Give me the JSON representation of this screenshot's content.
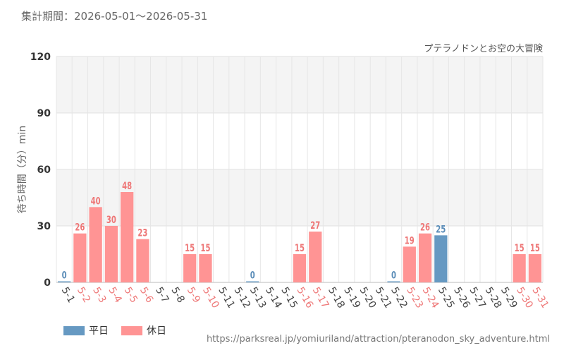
{
  "header": {
    "title": "集計期間：2026-05-01～2026-05-31"
  },
  "chart_data": {
    "type": "bar",
    "title": "プテラノドンとお空の大冒険",
    "ylabel": "待ち時間（分）min",
    "xlabel": "",
    "ylim": [
      0,
      120
    ],
    "yticks": [
      0,
      30,
      60,
      90,
      120
    ],
    "grid": true,
    "legend_placement": "bottom-left",
    "categories": [
      "5-1",
      "5-2",
      "5-3",
      "5-4",
      "5-5",
      "5-6",
      "5-7",
      "5-8",
      "5-9",
      "5-10",
      "5-11",
      "5-12",
      "5-13",
      "5-14",
      "5-15",
      "5-16",
      "5-17",
      "5-18",
      "5-19",
      "5-20",
      "5-21",
      "5-22",
      "5-23",
      "5-24",
      "5-25",
      "5-26",
      "5-27",
      "5-28",
      "5-29",
      "5-30",
      "5-31"
    ],
    "values": [
      0,
      26,
      40,
      30,
      48,
      23,
      null,
      null,
      15,
      15,
      null,
      null,
      0,
      null,
      null,
      15,
      27,
      null,
      null,
      null,
      null,
      0,
      19,
      26,
      25,
      null,
      null,
      null,
      null,
      15,
      15
    ],
    "day_types": [
      "weekday",
      "holiday",
      "holiday",
      "holiday",
      "holiday",
      "holiday",
      "weekday",
      "weekday",
      "holiday",
      "holiday",
      "weekday",
      "weekday",
      "weekday",
      "weekday",
      "weekday",
      "holiday",
      "holiday",
      "weekday",
      "weekday",
      "weekday",
      "weekday",
      "weekday",
      "holiday",
      "holiday",
      "weekday",
      "weekday",
      "weekday",
      "weekday",
      "weekday",
      "holiday",
      "holiday"
    ],
    "series": [
      {
        "key": "weekday",
        "name": "平日",
        "color": "#6699c2"
      },
      {
        "key": "holiday",
        "name": "休日",
        "color": "#ff9494"
      }
    ],
    "label_colors": {
      "weekday": "#5b8db8",
      "holiday": "#ee7777"
    },
    "tick_colors": {
      "weekday": "#444444",
      "holiday": "#ee7777"
    }
  },
  "legend": [
    {
      "label": "平日",
      "color": "#6699c2"
    },
    {
      "label": "休日",
      "color": "#ff9494"
    }
  ],
  "footer": {
    "source": "https://parksreal.jp/yomiuriland/attraction/pteranodon_sky_adventure.html"
  }
}
